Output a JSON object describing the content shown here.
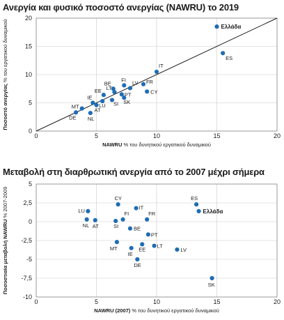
{
  "chart_data": [
    {
      "type": "scatter",
      "title": "Ανεργία και φυσικό ποσοστό ανεργίας (NAWRU) το 2019",
      "xlabel_bold": "NAWRU",
      "xlabel_rest": " % του δυνητικού εργατικού δυναμικού",
      "ylabel_bold": "Ποσοστό ανεργίας",
      "ylabel_rest": " % του εργατικού δυναμικού",
      "xlim": [
        0,
        20
      ],
      "ylim": [
        0,
        20
      ],
      "xticks": [
        0,
        5,
        10,
        15,
        20
      ],
      "yticks": [
        0,
        5,
        10,
        15,
        20
      ],
      "grid": true,
      "reference_line": [
        [
          0,
          0
        ],
        [
          20,
          20
        ]
      ],
      "points": [
        {
          "label": "Ελλάδα",
          "x": 15.0,
          "y": 18.5,
          "bold": true
        },
        {
          "label": "ES",
          "x": 15.5,
          "y": 13.8
        },
        {
          "label": "IT",
          "x": 10.0,
          "y": 10.5
        },
        {
          "label": "FR",
          "x": 8.9,
          "y": 8.3
        },
        {
          "label": "CY",
          "x": 9.2,
          "y": 7.0
        },
        {
          "label": "LV",
          "x": 7.8,
          "y": 7.6
        },
        {
          "label": "FI",
          "x": 7.3,
          "y": 8.1
        },
        {
          "label": "BE",
          "x": 6.4,
          "y": 7.5
        },
        {
          "label": "LT",
          "x": 6.5,
          "y": 6.9
        },
        {
          "label": "EE",
          "x": 5.6,
          "y": 6.4
        },
        {
          "label": "PT",
          "x": 7.1,
          "y": 6.5
        },
        {
          "label": "SK",
          "x": 7.3,
          "y": 5.9
        },
        {
          "label": "SI",
          "x": 6.3,
          "y": 5.5
        },
        {
          "label": "LU",
          "x": 5.5,
          "y": 5.3
        },
        {
          "label": "IE",
          "x": 4.7,
          "y": 5.0
        },
        {
          "label": "AT",
          "x": 5.0,
          "y": 4.6
        },
        {
          "label": "MT",
          "x": 3.8,
          "y": 4.0
        },
        {
          "label": "DE",
          "x": 3.3,
          "y": 3.3
        },
        {
          "label": "NL",
          "x": 4.5,
          "y": 3.2
        }
      ]
    },
    {
      "type": "scatter",
      "title": "Μεταβολή στη διαρθρωτική ανεργία από το 2007 μέχρι σήμερα",
      "xlabel_bold": "NAWRU (2007)",
      "xlabel_rest": " % του δυνητικού εργατικού δυναμικού",
      "ylabel_bold": "Ποσοστιαία μεταβολή NAWRU",
      "ylabel_rest": " % 2007-2009",
      "xlim": [
        0,
        20
      ],
      "ylim": [
        -10,
        5
      ],
      "xticks": [
        0,
        5,
        10,
        15,
        20
      ],
      "yticks": [
        5,
        2.5,
        0,
        -2.5,
        -5,
        -7.5,
        -10
      ],
      "ytick_labels": [
        "5",
        "2,5",
        "0",
        "-2,5",
        "-5",
        "-7,5",
        "-10"
      ],
      "grid": true,
      "points": [
        {
          "label": "ES",
          "x": 13.3,
          "y": 2.3
        },
        {
          "label": "Ελλάδα",
          "x": 13.5,
          "y": 1.4,
          "bold": true
        },
        {
          "label": "CY",
          "x": 6.8,
          "y": 2.3
        },
        {
          "label": "IT",
          "x": 8.3,
          "y": 1.8
        },
        {
          "label": "LU",
          "x": 4.3,
          "y": 1.4
        },
        {
          "label": "FI",
          "x": 7.2,
          "y": 0.3
        },
        {
          "label": "FR",
          "x": 9.2,
          "y": 0.3
        },
        {
          "label": "NL",
          "x": 4.2,
          "y": 0.3
        },
        {
          "label": "AT",
          "x": 4.9,
          "y": 0.2
        },
        {
          "label": "SI",
          "x": 6.6,
          "y": 0.1
        },
        {
          "label": "BE",
          "x": 7.8,
          "y": -0.9
        },
        {
          "label": "PT",
          "x": 9.3,
          "y": -1.7
        },
        {
          "label": "MT",
          "x": 6.7,
          "y": -2.7
        },
        {
          "label": "IE",
          "x": 7.9,
          "y": -3.5
        },
        {
          "label": "EE",
          "x": 8.8,
          "y": -3.0
        },
        {
          "label": "LT",
          "x": 9.8,
          "y": -3.2
        },
        {
          "label": "LV",
          "x": 11.7,
          "y": -3.7
        },
        {
          "label": "DE",
          "x": 8.4,
          "y": -5.0
        },
        {
          "label": "SK",
          "x": 14.6,
          "y": -7.5
        }
      ]
    }
  ]
}
